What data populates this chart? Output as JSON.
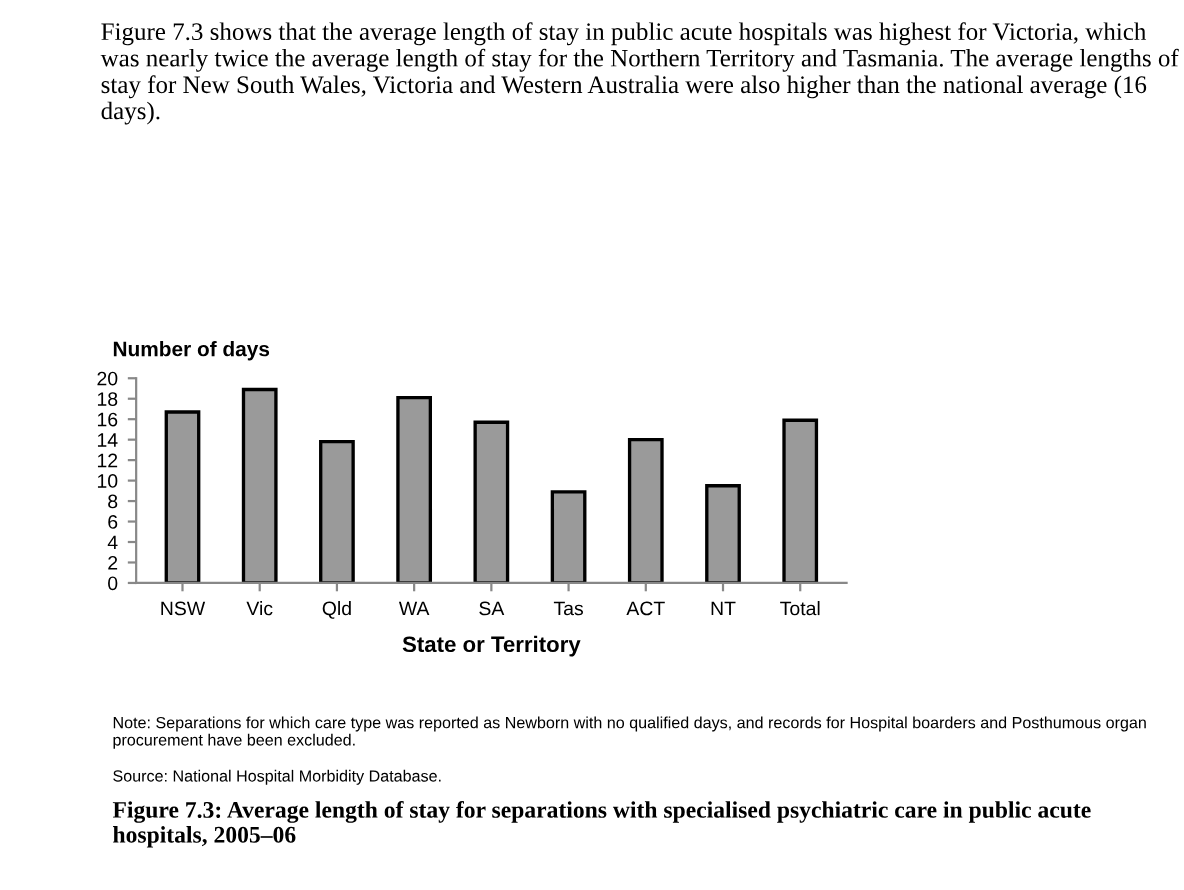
{
  "chart_data": {
    "type": "bar",
    "subtitle": "Figure 7.3 shows that the average length of stay in public acute hospitals was highest for Victoria, which was nearly twice the average length of stay for the Northern Territory and Tasmania. The average lengths of stay for New South Wales, Victoria and Western Australia were also higher than the national average (16 days).",
    "ylabel": "Number of days",
    "xlabel": "State or Territory",
    "categories": [
      "NSW",
      "Vic",
      "Qld",
      "WA",
      "SA",
      "Tas",
      "ACT",
      "NT",
      "Total"
    ],
    "values": [
      16.7,
      18.9,
      13.8,
      18.1,
      15.7,
      8.9,
      14.0,
      9.5,
      15.9
    ],
    "color": "#9a9a9a",
    "ylim": [
      0,
      20
    ],
    "yticks": [
      0,
      2,
      4,
      6,
      8,
      10,
      12,
      14,
      16,
      18,
      20
    ],
    "grid": false,
    "annotations": [
      "Note: Separations for which care type was reported as Newborn with no qualified days, and records for Hospital boarders and Posthumous organ procurement have been excluded.",
      "Source: National Hospital Morbidity Database."
    ],
    "title": "Figure 7.3: Average length of stay for separations with specialised psychiatric care in public acute hospitals, 2005–06"
  }
}
